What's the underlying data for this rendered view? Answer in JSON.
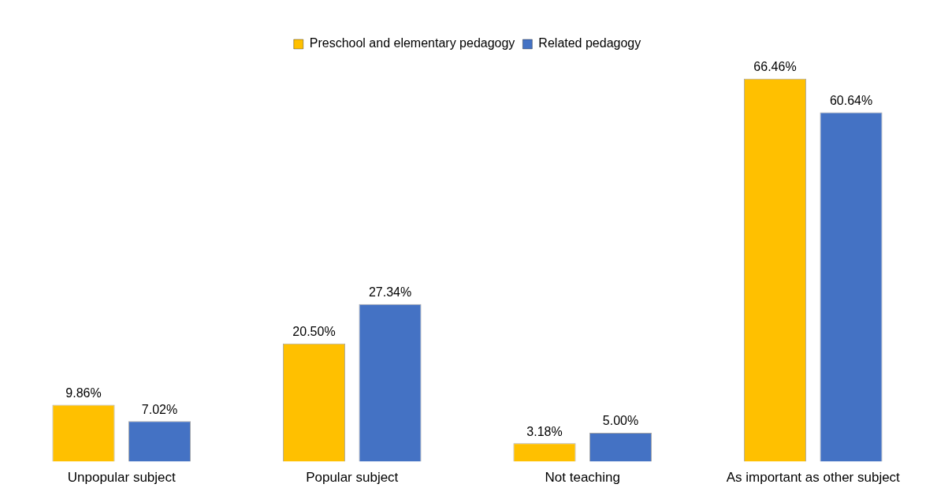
{
  "chart_data": {
    "type": "bar",
    "categories": [
      "Unpopular subject",
      "Popular subject",
      "Not teaching",
      "As important as other subject"
    ],
    "series": [
      {
        "name": "Preschool and elementary pedagogy",
        "color": "#ffc000",
        "values": [
          9.86,
          20.5,
          3.18,
          66.46
        ],
        "value_labels": [
          "9.86%",
          "20.50%",
          "3.18%",
          "66.46%"
        ]
      },
      {
        "name": "Related pedagogy",
        "color": "#4472c4",
        "values": [
          7.02,
          27.34,
          5.0,
          60.64
        ],
        "value_labels": [
          "7.02%",
          "27.34%",
          "5.00%",
          "60.64%"
        ]
      }
    ],
    "legend": "top",
    "grid": false,
    "tick_labels": "x"
  }
}
